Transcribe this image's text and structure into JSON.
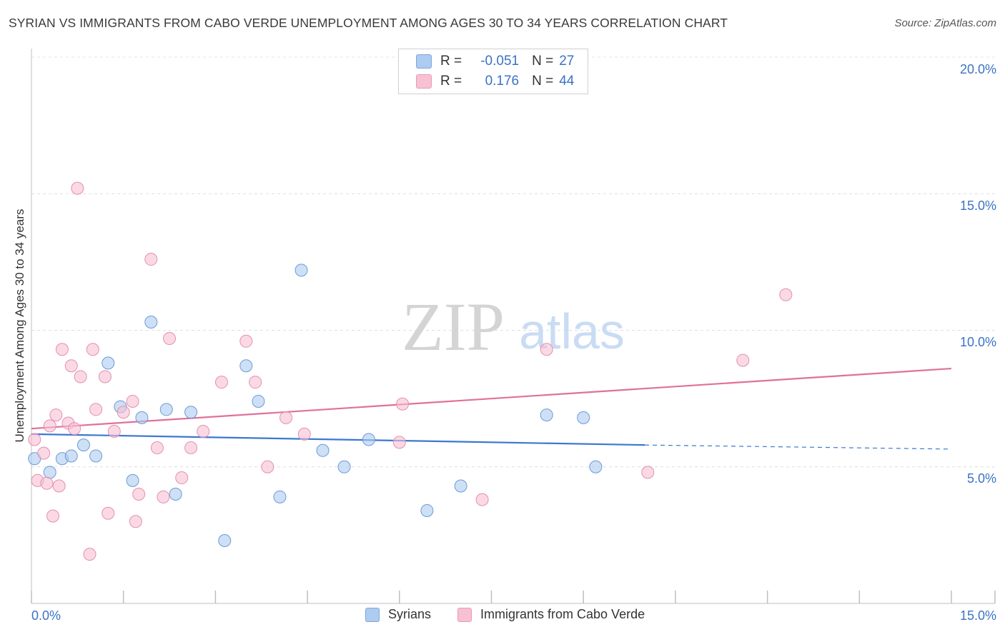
{
  "header": {
    "title": "SYRIAN VS IMMIGRANTS FROM CABO VERDE UNEMPLOYMENT AMONG AGES 30 TO 34 YEARS CORRELATION CHART",
    "source": "Source: ZipAtlas.com"
  },
  "watermark": {
    "zip": "ZIP",
    "atlas": "atlas"
  },
  "stats": {
    "rows": [
      {
        "r_label": "R =",
        "r_value": "-0.051",
        "n_label": "N =",
        "n_value": "27",
        "color": "#aecbf0",
        "border": "#7ea6dd"
      },
      {
        "r_label": "R =",
        "r_value": "0.176",
        "n_label": "N =",
        "n_value": "44",
        "color": "#f7c0d3",
        "border": "#e99ab6"
      }
    ]
  },
  "legend": {
    "items": [
      {
        "label": "Syrians",
        "color": "#aecbf0",
        "border": "#7ea6dd"
      },
      {
        "label": "Immigrants from Cabo Verde",
        "color": "#f7c0d3",
        "border": "#e99ab6"
      }
    ]
  },
  "chart_data": {
    "type": "scatter",
    "title": "SYRIAN VS IMMIGRANTS FROM CABO VERDE UNEMPLOYMENT AMONG AGES 30 TO 34 YEARS CORRELATION CHART",
    "xlabel": "",
    "ylabel": "Unemployment Among Ages 30 to 34 years",
    "xlim": [
      0,
      15
    ],
    "ylim": [
      0,
      20
    ],
    "x_tick_labels": [
      "0.0%",
      "15.0%"
    ],
    "y_tick_labels": [
      "5.0%",
      "10.0%",
      "15.0%",
      "20.0%"
    ],
    "y_ticks": [
      5,
      10,
      15,
      20
    ],
    "grid": true,
    "series": [
      {
        "name": "Syrians",
        "color": "#aecbf0",
        "stroke": "#6b9ad8",
        "trend_color": "#3b78d0",
        "trend": {
          "x0": 0.0,
          "y0": 6.2,
          "x1": 10.0,
          "y1": 5.8,
          "dash_to_x": 15.0,
          "dash_to_y": 5.65
        },
        "points": [
          [
            0.05,
            5.3
          ],
          [
            0.3,
            4.8
          ],
          [
            0.5,
            5.3
          ],
          [
            0.65,
            5.4
          ],
          [
            0.85,
            5.8
          ],
          [
            1.05,
            5.4
          ],
          [
            1.25,
            8.8
          ],
          [
            1.45,
            7.2
          ],
          [
            1.65,
            4.5
          ],
          [
            1.8,
            6.8
          ],
          [
            1.95,
            10.3
          ],
          [
            2.2,
            7.1
          ],
          [
            2.35,
            4.0
          ],
          [
            2.6,
            7.0
          ],
          [
            3.15,
            2.3
          ],
          [
            3.5,
            8.7
          ],
          [
            3.7,
            7.4
          ],
          [
            4.05,
            3.9
          ],
          [
            4.4,
            12.2
          ],
          [
            4.75,
            5.6
          ],
          [
            5.1,
            5.0
          ],
          [
            5.5,
            6.0
          ],
          [
            6.45,
            3.4
          ],
          [
            7.0,
            4.3
          ],
          [
            8.4,
            6.9
          ],
          [
            9.0,
            6.8
          ],
          [
            9.2,
            5.0
          ]
        ]
      },
      {
        "name": "Immigrants from Cabo Verde",
        "color": "#f7c0d3",
        "stroke": "#e58fae",
        "trend_color": "#e0709a",
        "trend": {
          "x0": 0.0,
          "y0": 6.4,
          "x1": 15.0,
          "y1": 8.6
        },
        "points": [
          [
            0.05,
            6.0
          ],
          [
            0.1,
            4.5
          ],
          [
            0.2,
            5.5
          ],
          [
            0.25,
            4.4
          ],
          [
            0.3,
            6.5
          ],
          [
            0.35,
            3.2
          ],
          [
            0.4,
            6.9
          ],
          [
            0.45,
            4.3
          ],
          [
            0.5,
            9.3
          ],
          [
            0.6,
            6.6
          ],
          [
            0.65,
            8.7
          ],
          [
            0.7,
            6.4
          ],
          [
            0.75,
            15.2
          ],
          [
            0.8,
            8.3
          ],
          [
            0.95,
            1.8
          ],
          [
            1.0,
            9.3
          ],
          [
            1.05,
            7.1
          ],
          [
            1.2,
            8.3
          ],
          [
            1.25,
            3.3
          ],
          [
            1.35,
            6.3
          ],
          [
            1.5,
            7.0
          ],
          [
            1.65,
            7.4
          ],
          [
            1.7,
            3.0
          ],
          [
            1.75,
            4.0
          ],
          [
            1.95,
            12.6
          ],
          [
            2.05,
            5.7
          ],
          [
            2.15,
            3.9
          ],
          [
            2.25,
            9.7
          ],
          [
            2.45,
            4.6
          ],
          [
            2.6,
            5.7
          ],
          [
            2.8,
            6.3
          ],
          [
            3.1,
            8.1
          ],
          [
            3.5,
            9.6
          ],
          [
            3.65,
            8.1
          ],
          [
            3.85,
            5.0
          ],
          [
            4.15,
            6.8
          ],
          [
            4.45,
            6.2
          ],
          [
            6.0,
            5.9
          ],
          [
            6.05,
            7.3
          ],
          [
            7.35,
            3.8
          ],
          [
            8.4,
            9.3
          ],
          [
            10.05,
            4.8
          ],
          [
            11.6,
            8.9
          ],
          [
            12.3,
            11.3
          ]
        ]
      }
    ]
  }
}
